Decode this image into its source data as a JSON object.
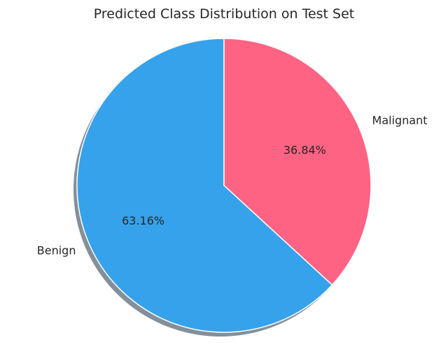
{
  "chart_data": {
    "type": "pie",
    "title": "Predicted Class Distribution on Test Set",
    "categories": [
      "Benign",
      "Malignant"
    ],
    "values": [
      63.16,
      36.84
    ],
    "value_labels": [
      "63.16%",
      "36.84%"
    ],
    "colors": [
      "#36a2eb",
      "#ff6384"
    ],
    "shadow": true,
    "start_angle_deg": 90,
    "direction": "counterclockwise"
  }
}
